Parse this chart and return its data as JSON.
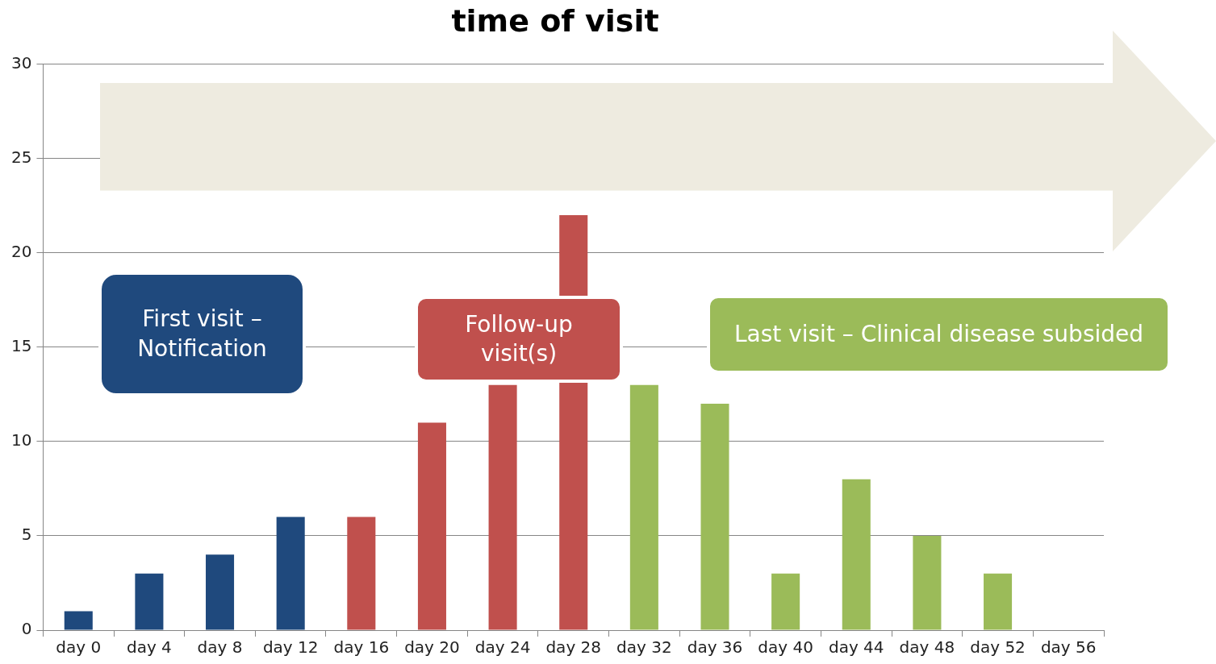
{
  "chart_data": {
    "type": "bar",
    "title": "time of visit",
    "categories": [
      "day 0",
      "day 4",
      "day 8",
      "day 12",
      "day 16",
      "day 20",
      "day 24",
      "day 28",
      "day 32",
      "day 36",
      "day 40",
      "day 44",
      "day 48",
      "day 52",
      "day 56"
    ],
    "values": [
      1,
      3,
      4,
      6,
      6,
      11,
      13,
      22,
      13,
      12,
      3,
      8,
      5,
      3,
      0
    ],
    "colors": [
      "#1f497d",
      "#1f497d",
      "#1f497d",
      "#1f497d",
      "#c0504d",
      "#c0504d",
      "#c0504d",
      "#c0504d",
      "#9bbb59",
      "#9bbb59",
      "#9bbb59",
      "#9bbb59",
      "#9bbb59",
      "#9bbb59",
      "#9bbb59"
    ],
    "ylim": [
      0,
      30
    ],
    "yticks": [
      0,
      5,
      10,
      15,
      20,
      25,
      30
    ],
    "grid": "y",
    "annotations": [
      "First visit – Notification",
      "Follow-up visit(s)",
      "Last visit – Clinical disease subsided"
    ]
  }
}
